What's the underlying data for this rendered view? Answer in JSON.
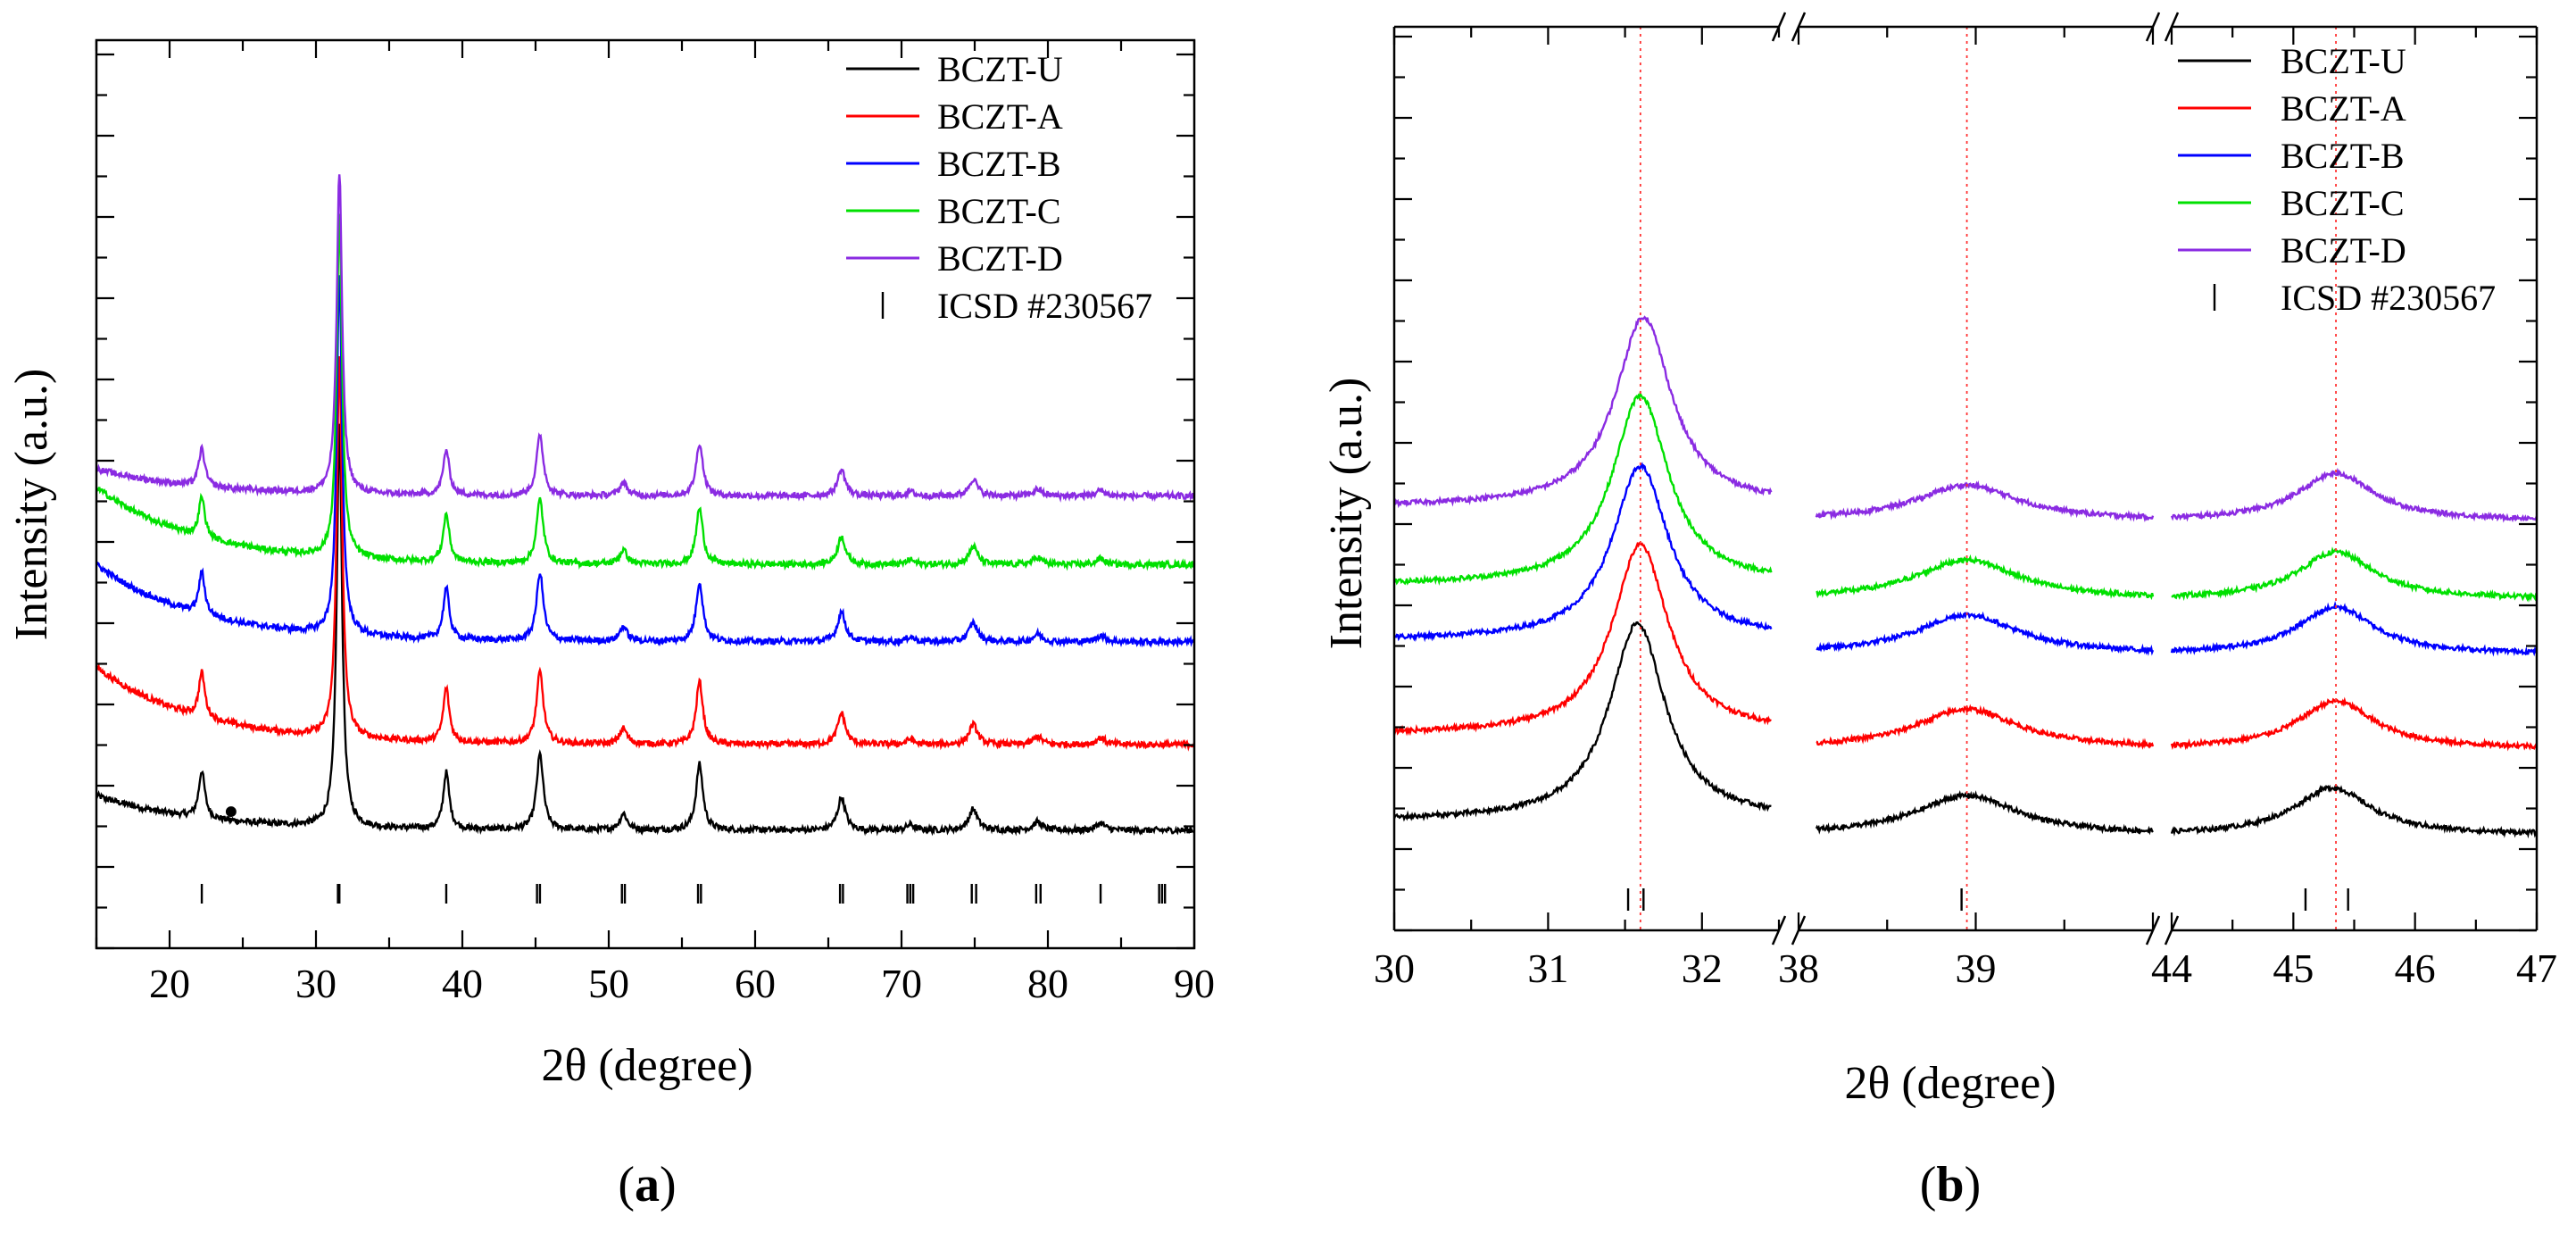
{
  "figure": {
    "panels": [
      {
        "label_open": "(",
        "label_letter": "a",
        "label_close": ")"
      },
      {
        "label_open": "(",
        "label_letter": "b",
        "label_close": ")"
      }
    ]
  },
  "chart_data": [
    {
      "type": "line",
      "panel": "a",
      "xlabel": "2θ (degree)",
      "ylabel": "Intensity (a.u.)",
      "xlim": [
        15,
        90
      ],
      "xticks": [
        20,
        30,
        40,
        50,
        60,
        70,
        80,
        90
      ],
      "yticks_labeled": false,
      "legend_position": "top-right",
      "colors": {
        "BCZT-U": "#000000",
        "BCZT-A": "#ff0000",
        "BCZT-B": "#0000ff",
        "BCZT-C": "#00e000",
        "BCZT-D": "#8a2be2"
      },
      "series": [
        {
          "name": "BCZT-U",
          "color": "#000000",
          "baseline": 0.0
        },
        {
          "name": "BCZT-A",
          "color": "#ff0000",
          "baseline": 1.0
        },
        {
          "name": "BCZT-B",
          "color": "#0000ff",
          "baseline": 2.2
        },
        {
          "name": "BCZT-C",
          "color": "#00e000",
          "baseline": 3.1
        },
        {
          "name": "BCZT-D",
          "color": "#8a2be2",
          "baseline": 3.9
        }
      ],
      "peaks": [
        {
          "x": 22.2,
          "h": 1.0,
          "w": 0.25
        },
        {
          "x": 31.6,
          "h": 8.5,
          "w": 0.22
        },
        {
          "x": 38.9,
          "h": 1.2,
          "w": 0.25
        },
        {
          "x": 45.3,
          "h": 1.6,
          "w": 0.28
        },
        {
          "x": 51.0,
          "h": 0.35,
          "w": 0.3
        },
        {
          "x": 56.2,
          "h": 1.4,
          "w": 0.28
        },
        {
          "x": 65.9,
          "h": 0.7,
          "w": 0.32
        },
        {
          "x": 70.6,
          "h": 0.12,
          "w": 0.3
        },
        {
          "x": 74.9,
          "h": 0.45,
          "w": 0.35
        },
        {
          "x": 79.3,
          "h": 0.18,
          "w": 0.35
        },
        {
          "x": 83.6,
          "h": 0.15,
          "w": 0.35
        }
      ],
      "reference": {
        "name": "ICSD #230567",
        "positions": [
          22.2,
          31.5,
          31.6,
          38.9,
          45.1,
          45.3,
          50.9,
          51.1,
          56.1,
          56.3,
          65.8,
          66.0,
          70.4,
          70.6,
          70.8,
          74.8,
          75.1,
          79.2,
          79.5,
          83.6,
          87.6,
          87.8,
          88.0
        ]
      },
      "annotations": [
        {
          "text": "•",
          "x": 24.2
        }
      ]
    },
    {
      "type": "line",
      "panel": "b",
      "xlabel": "2θ (degree)",
      "ylabel": "Intensity (a.u.)",
      "broken_axis": true,
      "segments": [
        {
          "range": [
            30,
            32.5
          ],
          "ticks": [
            30,
            31,
            32
          ]
        },
        {
          "range": [
            38,
            40
          ],
          "ticks": [
            38,
            39
          ]
        },
        {
          "range": [
            44,
            47
          ],
          "ticks": [
            44,
            45,
            46,
            47
          ]
        }
      ],
      "dotted_guides": [
        31.6,
        38.95,
        45.35
      ],
      "yticks_labeled": false,
      "legend_position": "top-right",
      "series": [
        {
          "name": "BCZT-U",
          "color": "#000000",
          "baseline": 0.0,
          "peaks": [
            {
              "x": 31.58,
              "h": 5.0
            },
            {
              "x": 38.95,
              "h": 1.0
            },
            {
              "x": 45.32,
              "h": 1.2
            }
          ]
        },
        {
          "name": "BCZT-A",
          "color": "#ff0000",
          "baseline": 1.1,
          "peaks": [
            {
              "x": 31.6,
              "h": 4.8
            },
            {
              "x": 38.95,
              "h": 1.0
            },
            {
              "x": 45.35,
              "h": 1.2
            }
          ]
        },
        {
          "name": "BCZT-B",
          "color": "#0000ff",
          "baseline": 2.3,
          "peaks": [
            {
              "x": 31.6,
              "h": 4.4
            },
            {
              "x": 38.95,
              "h": 1.0
            },
            {
              "x": 45.35,
              "h": 1.2
            }
          ]
        },
        {
          "name": "BCZT-C",
          "color": "#00e000",
          "baseline": 3.0,
          "peaks": [
            {
              "x": 31.6,
              "h": 4.8
            },
            {
              "x": 38.95,
              "h": 1.0
            },
            {
              "x": 45.35,
              "h": 1.2
            }
          ]
        },
        {
          "name": "BCZT-D",
          "color": "#8a2be2",
          "baseline": 4.0,
          "peaks": [
            {
              "x": 31.62,
              "h": 4.8
            },
            {
              "x": 38.95,
              "h": 0.9
            },
            {
              "x": 45.35,
              "h": 1.2
            }
          ]
        }
      ],
      "reference": {
        "name": "ICSD #230567",
        "positions": [
          31.52,
          31.62,
          38.92,
          45.1,
          45.45
        ]
      }
    }
  ]
}
